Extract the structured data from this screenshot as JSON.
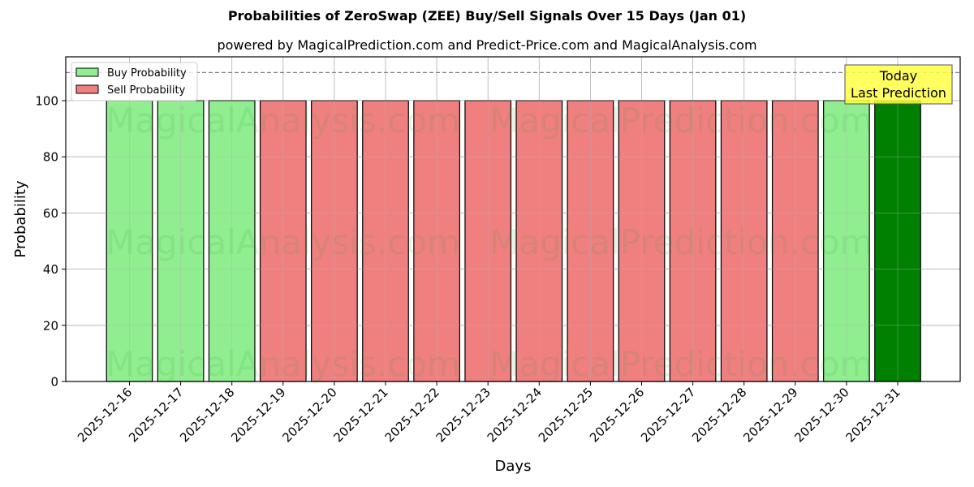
{
  "header": {
    "title": "Probabilities of ZeroSwap (ZEE) Buy/Sell Signals Over 15 Days (Jan 01)",
    "subtitle": "powered by MagicalPrediction.com and Predict-Price.com and MagicalAnalysis.com"
  },
  "legend": {
    "items": [
      {
        "label": "Buy Probability",
        "color": "#90ee90"
      },
      {
        "label": "Sell Probability",
        "color": "#f08080"
      }
    ]
  },
  "annotation": {
    "line1": "Today",
    "line2": "Last Prediction",
    "bg": "#ffff44"
  },
  "watermarks": [
    "MagicalAnalysis.com",
    "MagicalPrediction.com"
  ],
  "colors": {
    "buy": "#90ee90",
    "sell": "#f08080",
    "today": "#008000",
    "grid": "#b0b0b0",
    "dashed": "#808080"
  },
  "chart_data": {
    "type": "bar",
    "title": "Probabilities of ZeroSwap (ZEE) Buy/Sell Signals Over 15 Days (Jan 01)",
    "subtitle": "powered by MagicalPrediction.com and Predict-Price.com and MagicalAnalysis.com",
    "xlabel": "Days",
    "ylabel": "Probability",
    "ylim": [
      0,
      115.6
    ],
    "yticks": [
      0,
      20,
      40,
      60,
      80,
      100
    ],
    "grid": true,
    "legend_position": "upper left",
    "reference_line": {
      "y": 110,
      "style": "dashed"
    },
    "categories": [
      "2025-12-16",
      "2025-12-17",
      "2025-12-18",
      "2025-12-19",
      "2025-12-20",
      "2025-12-21",
      "2025-12-22",
      "2025-12-23",
      "2025-12-24",
      "2025-12-25",
      "2025-12-26",
      "2025-12-27",
      "2025-12-28",
      "2025-12-29",
      "2025-12-30",
      "2025-12-31"
    ],
    "values": [
      100,
      100,
      100,
      100,
      100,
      100,
      100,
      100,
      100,
      100,
      100,
      100,
      100,
      100,
      100,
      100
    ],
    "signals": [
      "buy",
      "buy",
      "buy",
      "sell",
      "sell",
      "sell",
      "sell",
      "sell",
      "sell",
      "sell",
      "sell",
      "sell",
      "sell",
      "sell",
      "buy",
      "buy-today"
    ],
    "series": [
      {
        "name": "Buy Probability",
        "values": [
          100,
          100,
          100,
          null,
          null,
          null,
          null,
          null,
          null,
          null,
          null,
          null,
          null,
          null,
          100,
          100
        ]
      },
      {
        "name": "Sell Probability",
        "values": [
          null,
          null,
          null,
          100,
          100,
          100,
          100,
          100,
          100,
          100,
          100,
          100,
          100,
          100,
          null,
          null
        ]
      }
    ],
    "annotation": "Today\nLast Prediction"
  }
}
